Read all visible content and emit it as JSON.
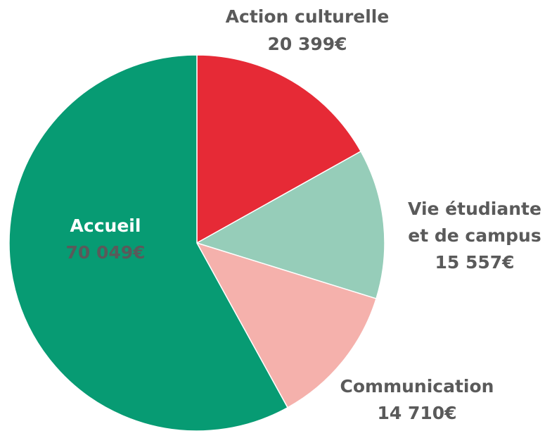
{
  "chart_data": {
    "type": "pie",
    "categories": [
      "Action culturelle",
      "Vie étudiante et de campus",
      "Communication",
      "Accueil"
    ],
    "values": [
      20399,
      15557,
      14710,
      70049
    ],
    "value_labels": [
      "20 399€",
      "15 557€",
      "14 710€",
      "70 049€"
    ],
    "colors": [
      "#e62a36",
      "#96cdb9",
      "#f5b1ac",
      "#079b73"
    ]
  }
}
